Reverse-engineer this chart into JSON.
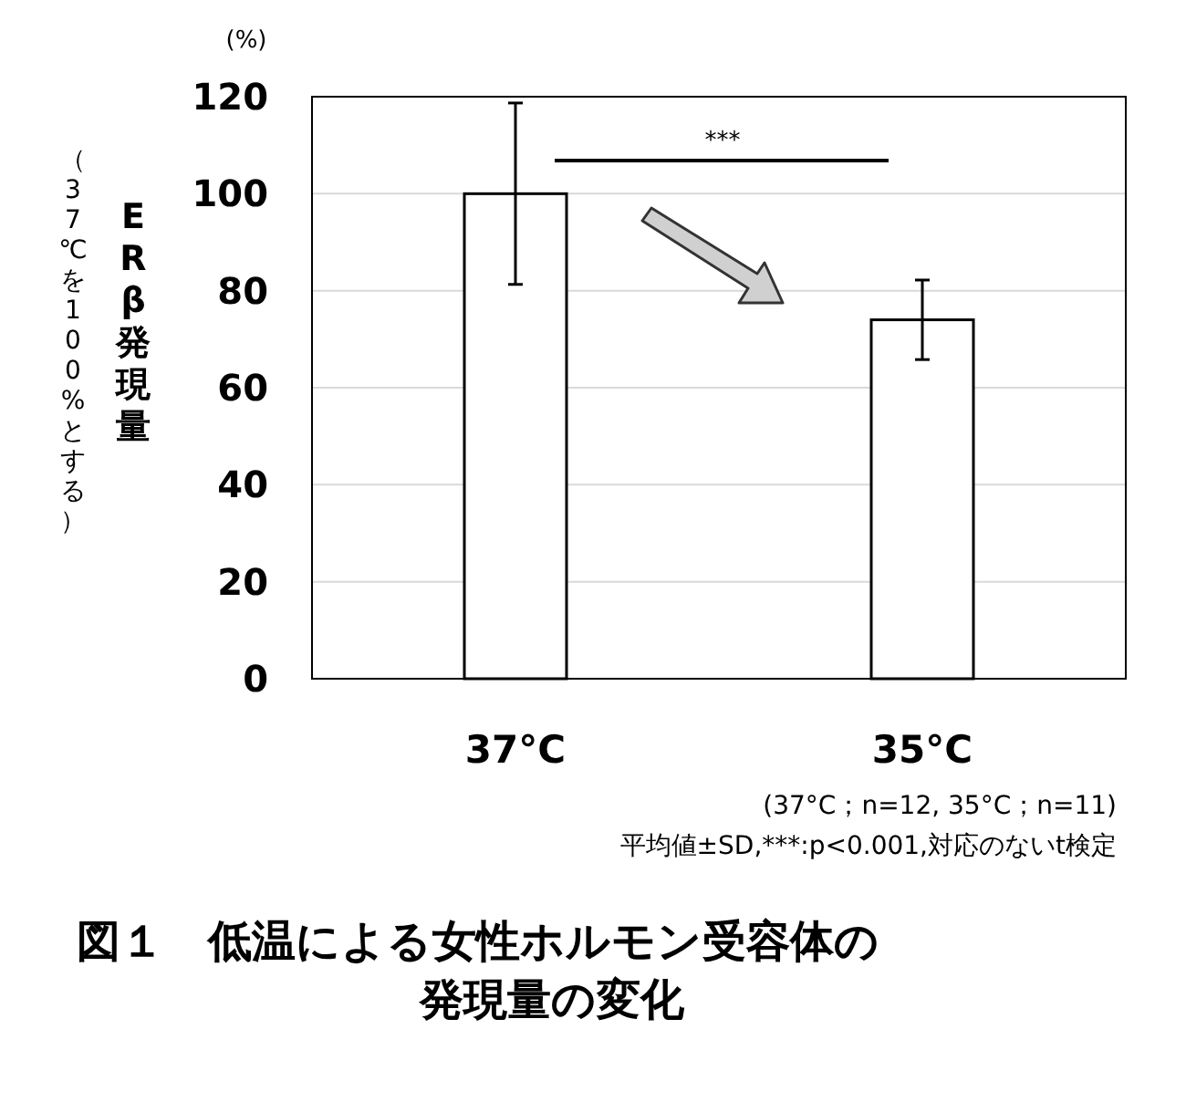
{
  "chart_data": {
    "type": "bar",
    "title": "図１　低温による女性ホルモン受容体の発現量の変化",
    "ylabel": "ERβ発現量",
    "categories": [
      "37°C",
      "35°C"
    ],
    "values": [
      100,
      74
    ],
    "errors": [
      18.7,
      8.2
    ],
    "color": "#ffffff",
    "ylim": [
      0,
      120
    ],
    "yticks": [
      0,
      20,
      40,
      60,
      80,
      100,
      120
    ],
    "grid": "y",
    "annotations": [
      "(%)",
      "***",
      "(37°C；n=12, 35°C；n=11)",
      "平均値±SD,***:p<0.001,対応のないt検定",
      "（37℃を100%とする）"
    ]
  }
}
